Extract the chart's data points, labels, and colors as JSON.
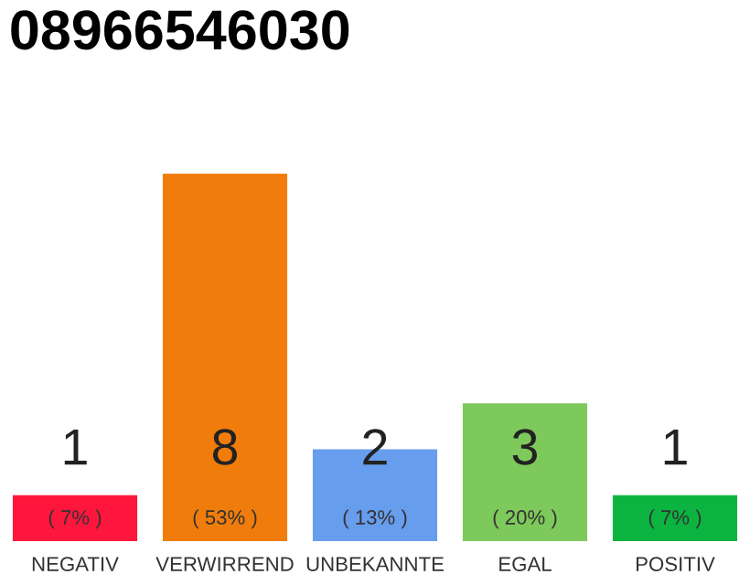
{
  "chart_data": {
    "type": "bar",
    "title": "08966546030",
    "categories": [
      "NEGATIV",
      "VERWIRREND",
      "UNBEKANNTE",
      "EGAL",
      "POSITIV"
    ],
    "values": [
      1,
      8,
      2,
      3,
      1
    ],
    "colors": [
      "#fe163c",
      "#f07d0b",
      "#679ded",
      "#7ec95b",
      "#0bb440"
    ],
    "data_labels": true,
    "annotations": [
      "( 7% )",
      "( 53% )",
      "( 13% )",
      "( 20% )",
      "( 7% )"
    ]
  }
}
